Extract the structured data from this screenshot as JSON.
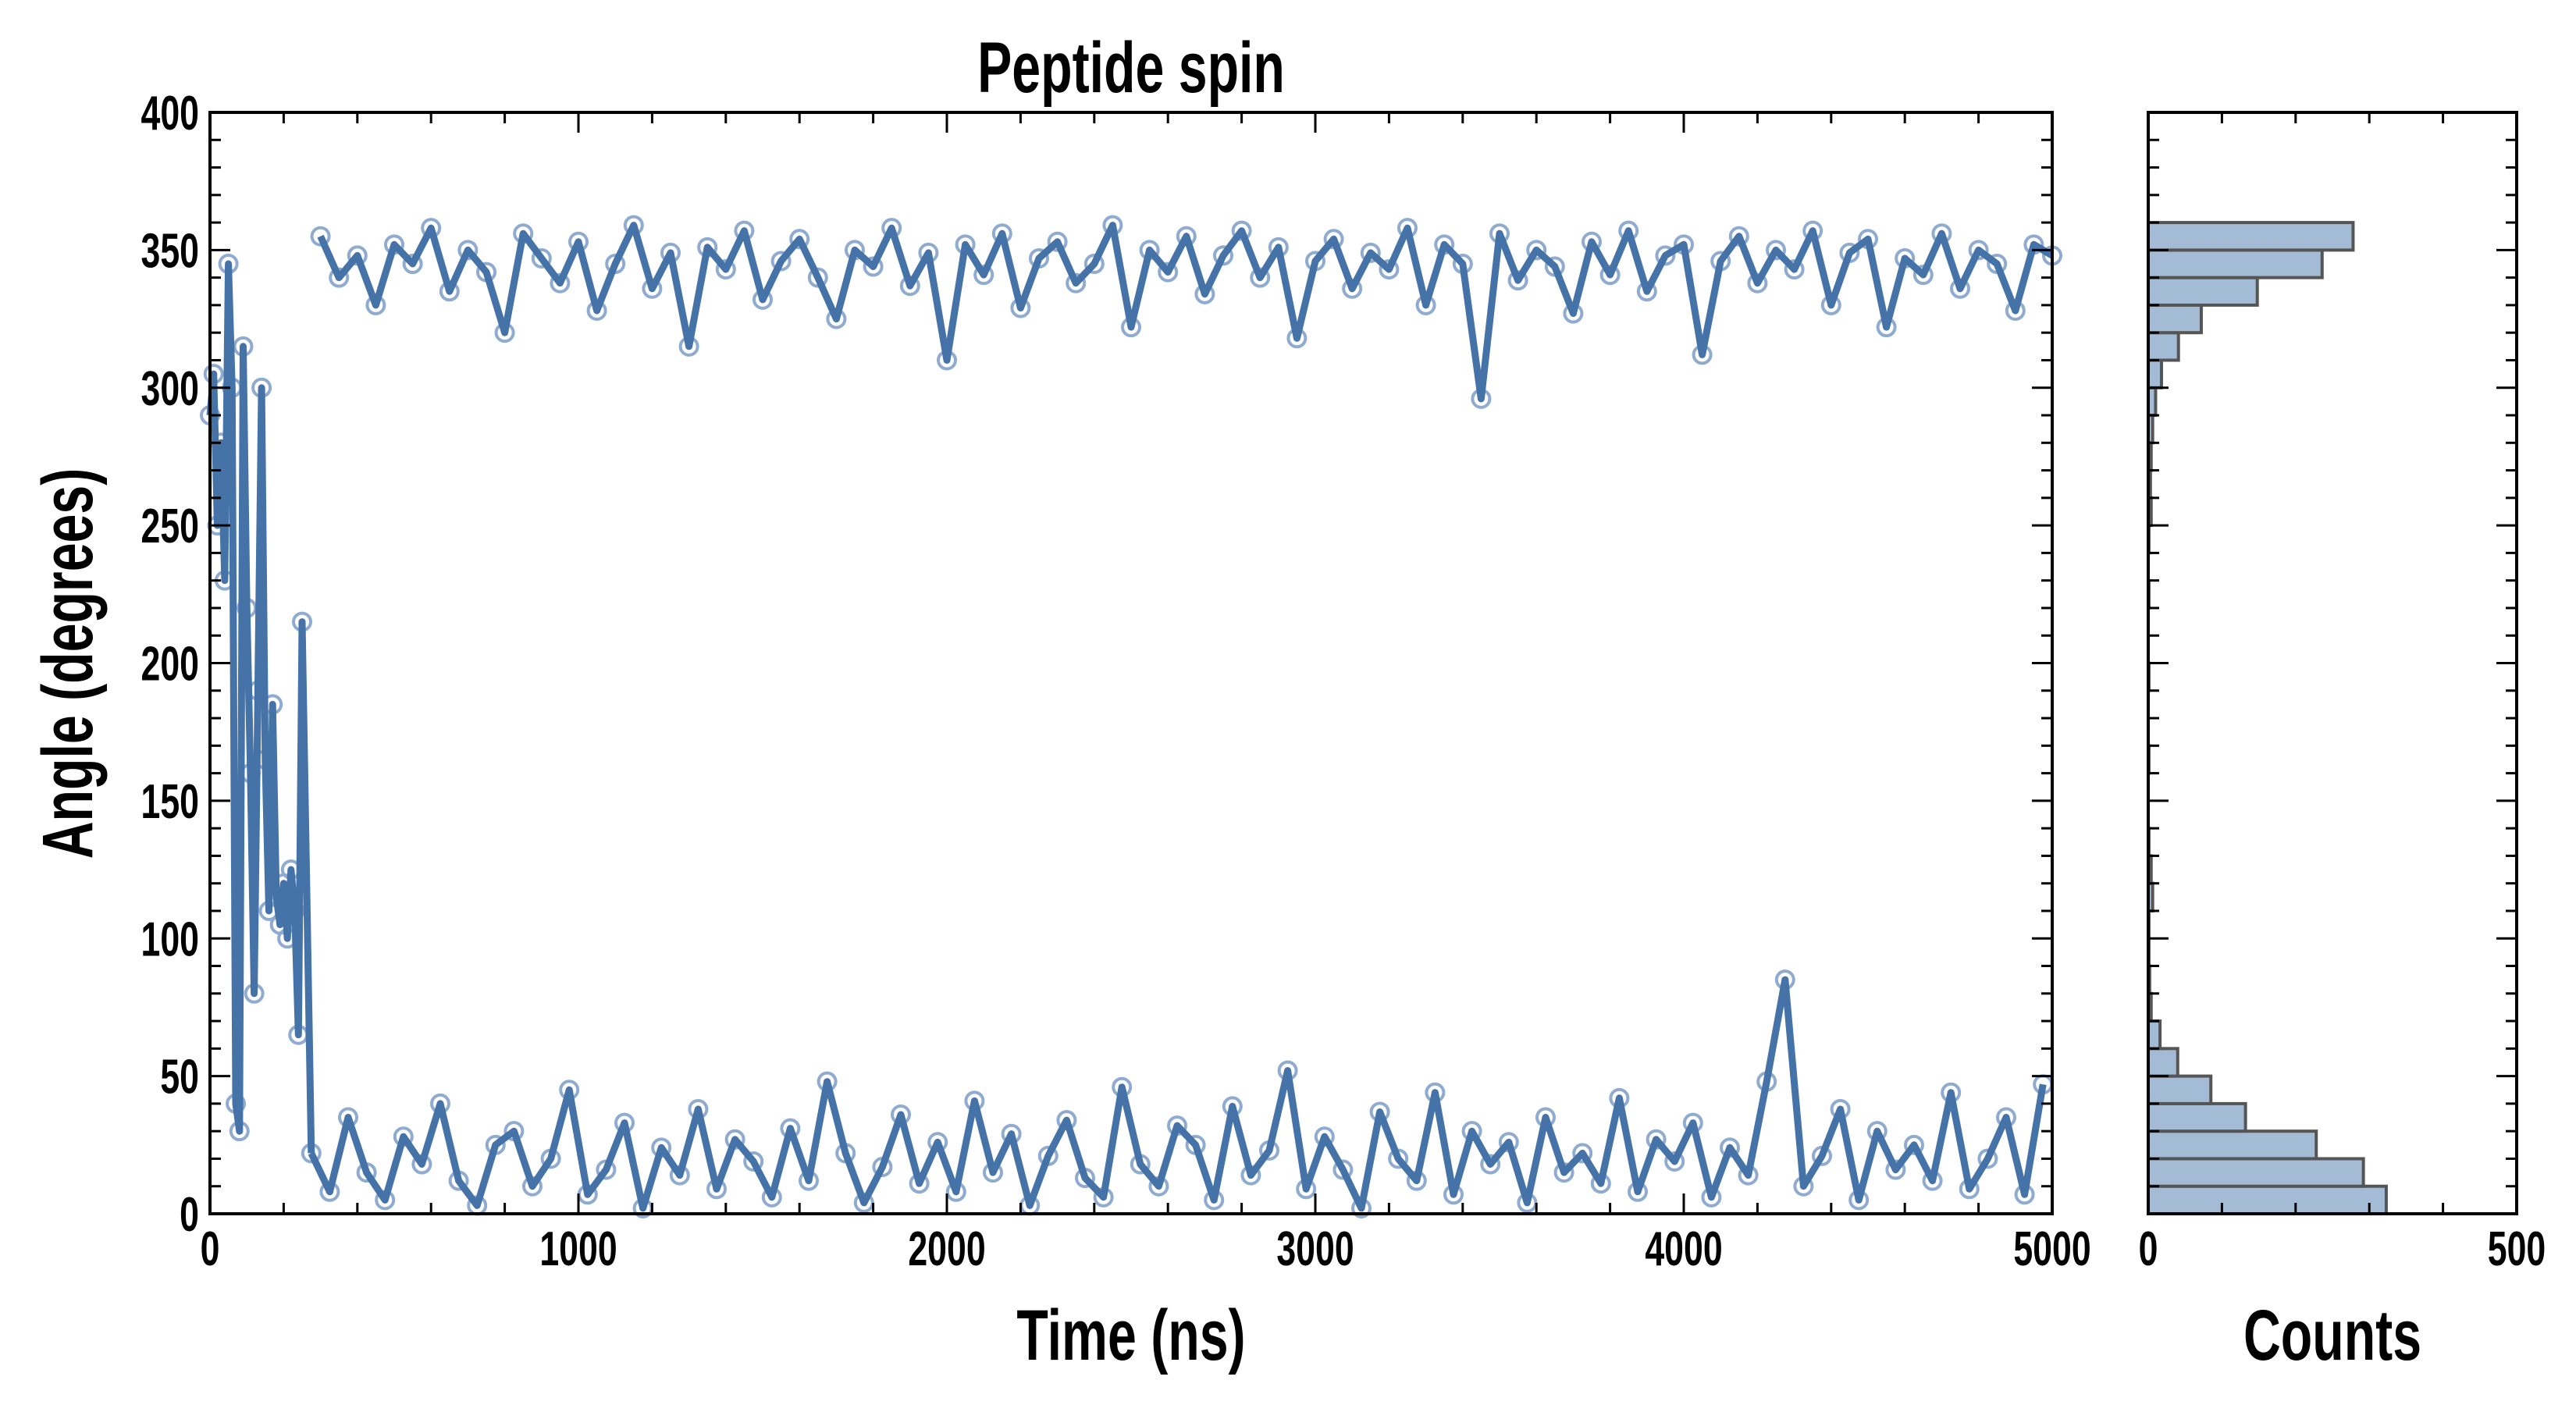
{
  "chart_data": [
    {
      "type": "scatter",
      "title": "Peptide spin",
      "xlabel": "Time (ns)",
      "ylabel": "Angle (degrees)",
      "xlim": [
        0,
        5000
      ],
      "ylim": [
        0,
        400
      ],
      "xticks": [
        "0",
        "1000",
        "2000",
        "3000",
        "4000",
        "5000"
      ],
      "yticks": [
        "0",
        "50",
        "100",
        "150",
        "200",
        "250",
        "300",
        "350",
        "400"
      ],
      "grid": false,
      "colors": {
        "line": "#4573a8",
        "marker": "#8fabcf"
      },
      "early": {
        "t": [
          0,
          10,
          20,
          30,
          40,
          50,
          60,
          70,
          80,
          90,
          100,
          110,
          120,
          130,
          140,
          150,
          160,
          170,
          180,
          190,
          200,
          210,
          220,
          230,
          240,
          250
        ],
        "angle": [
          290,
          305,
          250,
          280,
          230,
          345,
          300,
          40,
          30,
          315,
          220,
          160,
          80,
          190,
          300,
          165,
          110,
          185,
          115,
          105,
          120,
          100,
          125,
          110,
          65,
          215
        ]
      },
      "lower_band": {
        "t0": 275,
        "dt": 50,
        "angle": [
          22,
          8,
          35,
          15,
          5,
          28,
          18,
          40,
          12,
          3,
          25,
          30,
          10,
          20,
          45,
          7,
          16,
          33,
          2,
          24,
          14,
          38,
          9,
          27,
          19,
          6,
          31,
          12,
          48,
          22,
          4,
          17,
          36,
          11,
          26,
          8,
          41,
          15,
          29,
          3,
          21,
          34,
          13,
          6,
          46,
          18,
          10,
          32,
          25,
          5,
          39,
          14,
          23,
          52,
          9,
          28,
          16,
          2,
          37,
          20,
          12,
          44,
          7,
          30,
          18,
          26,
          4,
          35,
          15,
          22,
          11,
          42,
          8,
          27,
          19,
          33,
          6,
          24,
          14,
          48,
          85,
          10,
          21,
          38,
          5,
          30,
          16,
          25,
          12,
          44,
          9,
          20,
          35,
          7,
          47
        ]
      },
      "upper_band": {
        "t0": 300,
        "dt": 50,
        "angle": [
          355,
          340,
          348,
          330,
          352,
          345,
          358,
          335,
          350,
          342,
          320,
          356,
          347,
          338,
          353,
          328,
          345,
          359,
          336,
          349,
          315,
          351,
          343,
          357,
          332,
          346,
          354,
          340,
          325,
          350,
          344,
          358,
          337,
          349,
          310,
          352,
          341,
          356,
          329,
          347,
          353,
          338,
          345,
          359,
          322,
          350,
          342,
          355,
          334,
          348,
          357,
          340,
          351,
          318,
          346,
          354,
          336,
          349,
          343,
          358,
          330,
          352,
          345,
          296,
          356,
          339,
          350,
          344,
          327,
          353,
          341,
          357,
          335,
          348,
          352,
          312,
          346,
          355,
          338,
          350,
          343,
          357,
          330,
          349,
          354,
          322,
          347,
          341,
          356,
          336,
          350,
          345,
          328,
          352,
          348
        ]
      }
    },
    {
      "type": "bar",
      "orientation": "horizontal",
      "xlabel": "Counts",
      "xlim": [
        0,
        500
      ],
      "xticks": [
        "0",
        "500"
      ],
      "bin_width": 10,
      "bin_starts": [
        0,
        10,
        20,
        30,
        40,
        50,
        60,
        70,
        80,
        90,
        100,
        110,
        120,
        130,
        140,
        150,
        160,
        170,
        180,
        190,
        200,
        210,
        220,
        230,
        240,
        250,
        260,
        270,
        280,
        290,
        300,
        310,
        320,
        330,
        340,
        350,
        360,
        370,
        380,
        390
      ],
      "counts": [
        323,
        292,
        228,
        132,
        85,
        40,
        16,
        4,
        2,
        1,
        1,
        6,
        4,
        1,
        0,
        0,
        1,
        0,
        0,
        1,
        0,
        0,
        1,
        0,
        1,
        4,
        3,
        4,
        6,
        10,
        18,
        41,
        72,
        148,
        236,
        278,
        0,
        0,
        0,
        0
      ],
      "colors": {
        "fill": "#a3bbd5",
        "edge": "#555555"
      }
    }
  ]
}
